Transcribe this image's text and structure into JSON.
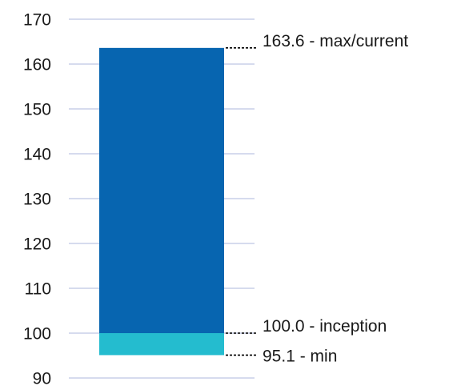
{
  "chart_data": {
    "type": "bar",
    "ylim": [
      90,
      170
    ],
    "yticks": [
      "170",
      "160",
      "150",
      "140",
      "130",
      "120",
      "110",
      "100",
      "90"
    ],
    "segments": [
      {
        "from": 95.1,
        "to": 100.0,
        "color": "#24bccf"
      },
      {
        "from": 100.0,
        "to": 163.6,
        "color": "#0765b0"
      }
    ],
    "annotations": [
      {
        "value": 163.6,
        "label": "163.6 - max/current"
      },
      {
        "value": 100.0,
        "label": "100.0 - inception"
      },
      {
        "value": 95.1,
        "label": "95.1 - min"
      }
    ],
    "colors": {
      "grid": "#c9cfe8",
      "leader": "#000000",
      "text": "#1a1a1a"
    },
    "grid": true
  }
}
